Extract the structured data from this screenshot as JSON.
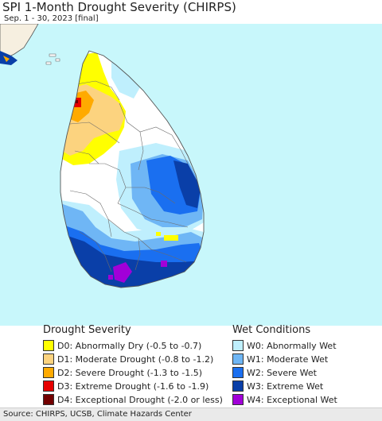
{
  "title": "SPI 1-Month Drought Severity (CHIRPS)",
  "subtitle": "Sep. 1 - 30, 2023 [final]",
  "colors": {
    "sea": "#c8f7fb",
    "land": "#ffffff",
    "boundary": "#555555",
    "mainland": "#f6efe0"
  },
  "legend": {
    "drought": {
      "heading": "Drought Severity",
      "items": [
        {
          "label": "D0: Abnormally Dry (-0.5 to -0.7)",
          "color": "#ffff00"
        },
        {
          "label": "D1: Moderate Drought (-0.8 to -1.2)",
          "color": "#fcd37f"
        },
        {
          "label": "D2: Severe Drought (-1.3 to -1.5)",
          "color": "#ffaa00"
        },
        {
          "label": "D3: Extreme Drought (-1.6 to -1.9)",
          "color": "#e60000"
        },
        {
          "label": "D4: Exceptional Drought (-2.0 or less)",
          "color": "#730000"
        }
      ]
    },
    "wet": {
      "heading": "Wet Conditions",
      "items": [
        {
          "label": "W0: Abnormally Wet",
          "color": "#bfeffd"
        },
        {
          "label": "W1: Moderate Wet",
          "color": "#6fb6f5"
        },
        {
          "label": "W2: Severe Wet",
          "color": "#1a6ff0"
        },
        {
          "label": "W3: Extreme Wet",
          "color": "#0a3fa8"
        },
        {
          "label": "W4: Exceptional Wet",
          "color": "#a100d8"
        }
      ]
    }
  },
  "source": "Source: CHIRPS, UCSB, Climate Hazards Center"
}
